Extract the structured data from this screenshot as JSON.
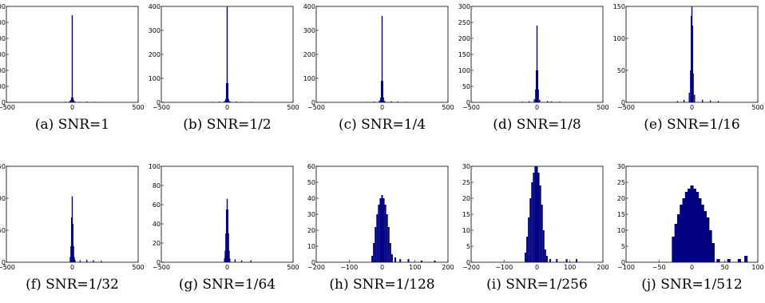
{
  "chart_data": [
    {
      "type": "bar",
      "caption": "(a)  SNR=1",
      "xlim": [
        -500,
        500
      ],
      "ylim": [
        0,
        600
      ],
      "xticks": [
        "−500",
        "0",
        "500"
      ],
      "yticks": [
        "0",
        "100",
        "200",
        "300",
        "400",
        "500",
        "600"
      ],
      "x": [
        -110,
        -50,
        -20,
        -10,
        -5,
        0,
        5,
        10,
        20,
        60,
        110,
        170,
        210
      ],
      "values": [
        2,
        4,
        8,
        15,
        30,
        545,
        30,
        15,
        6,
        3,
        4,
        3,
        2
      ]
    },
    {
      "type": "bar",
      "caption": "(b)  SNR=1/2",
      "xlim": [
        -500,
        500
      ],
      "ylim": [
        0,
        400
      ],
      "xticks": [
        "−500",
        "0",
        "500"
      ],
      "yticks": [
        "0",
        "100",
        "200",
        "300",
        "400"
      ],
      "x": [
        -110,
        -60,
        -20,
        -10,
        -5,
        0,
        5,
        10,
        20,
        70,
        110,
        180
      ],
      "values": [
        2,
        3,
        6,
        14,
        80,
        400,
        80,
        14,
        5,
        3,
        2,
        2
      ]
    },
    {
      "type": "bar",
      "caption": "(c)  SNR=1/4",
      "xlim": [
        -500,
        500
      ],
      "ylim": [
        0,
        400
      ],
      "xticks": [
        "−500",
        "0",
        "500"
      ],
      "yticks": [
        "0",
        "100",
        "200",
        "300",
        "400"
      ],
      "x": [
        -120,
        -60,
        -20,
        -10,
        -5,
        0,
        5,
        10,
        20,
        70,
        120,
        180
      ],
      "values": [
        2,
        3,
        8,
        20,
        90,
        360,
        90,
        20,
        6,
        4,
        3,
        2
      ]
    },
    {
      "type": "bar",
      "caption": "(d)  SNR=1/8",
      "xlim": [
        -500,
        500
      ],
      "ylim": [
        0,
        300
      ],
      "xticks": [
        "−500",
        "0",
        "500"
      ],
      "yticks": [
        "0",
        "50",
        "100",
        "150",
        "200",
        "250",
        "300"
      ],
      "x": [
        -110,
        -60,
        -20,
        -10,
        -5,
        0,
        5,
        10,
        20,
        80,
        110,
        170
      ],
      "values": [
        2,
        3,
        10,
        40,
        100,
        240,
        100,
        40,
        8,
        4,
        3,
        2
      ]
    },
    {
      "type": "bar",
      "caption": "(e)  SNR=1/16",
      "xlim": [
        -500,
        500
      ],
      "ylim": [
        0,
        150
      ],
      "xticks": [
        "−500",
        "0",
        "500"
      ],
      "yticks": [
        "0",
        "50",
        "100",
        "150"
      ],
      "x": [
        -110,
        -60,
        -20,
        -10,
        -5,
        0,
        5,
        10,
        20,
        80,
        140,
        200
      ],
      "values": [
        2,
        4,
        15,
        50,
        135,
        150,
        120,
        45,
        12,
        4,
        3,
        2
      ]
    },
    {
      "type": "bar",
      "caption": "(f)  SNR=1/32",
      "xlim": [
        -500,
        500
      ],
      "ylim": [
        0,
        150
      ],
      "xticks": [
        "−500",
        "0",
        "500"
      ],
      "yticks": [
        "0",
        "50",
        "100",
        "150"
      ],
      "x": [
        -15,
        -10,
        -5,
        0,
        5,
        10,
        15,
        20,
        60,
        110,
        160,
        220
      ],
      "values": [
        8,
        25,
        70,
        103,
        60,
        25,
        8,
        4,
        3,
        4,
        3,
        2
      ]
    },
    {
      "type": "bar",
      "caption": "(g)  SNR=1/64",
      "xlim": [
        -500,
        500
      ],
      "ylim": [
        0,
        100
      ],
      "xticks": [
        "−500",
        "0",
        "500"
      ],
      "yticks": [
        "0",
        "20",
        "40",
        "60",
        "80",
        "100"
      ],
      "x": [
        -20,
        -15,
        -10,
        -5,
        0,
        5,
        10,
        15,
        20,
        60,
        110,
        180
      ],
      "values": [
        4,
        12,
        30,
        55,
        66,
        55,
        30,
        12,
        4,
        3,
        2,
        2
      ]
    },
    {
      "type": "bar",
      "caption": "(h)  SNR=1/128",
      "xlim": [
        -200,
        200
      ],
      "ylim": [
        0,
        60
      ],
      "xticks": [
        "−200",
        "−100",
        "0",
        "100",
        "200"
      ],
      "yticks": [
        "0",
        "10",
        "20",
        "30",
        "40",
        "50",
        "60"
      ],
      "x": [
        -30,
        -25,
        -20,
        -15,
        -10,
        -5,
        0,
        5,
        10,
        15,
        20,
        25,
        30,
        40,
        55,
        80,
        120,
        160
      ],
      "values": [
        4,
        12,
        22,
        30,
        36,
        40,
        42,
        40,
        36,
        30,
        22,
        12,
        5,
        3,
        2,
        2,
        1,
        1
      ]
    },
    {
      "type": "bar",
      "caption": "(i)  SNR=1/256",
      "xlim": [
        -200,
        200
      ],
      "ylim": [
        0,
        30
      ],
      "xticks": [
        "−200",
        "−100",
        "0",
        "100",
        "200"
      ],
      "yticks": [
        "0",
        "5",
        "10",
        "15",
        "20",
        "25",
        "30"
      ],
      "x": [
        -35,
        -30,
        -25,
        -20,
        -15,
        -10,
        -5,
        0,
        5,
        10,
        15,
        20,
        25,
        30,
        40,
        60,
        90,
        120
      ],
      "values": [
        3,
        8,
        14,
        20,
        25,
        28,
        30,
        30,
        28,
        24,
        18,
        10,
        4,
        2,
        1,
        1,
        1,
        1
      ]
    },
    {
      "type": "bar",
      "caption": "(j)  SNR=1/512",
      "xlim": [
        -100,
        100
      ],
      "ylim": [
        0,
        30
      ],
      "xticks": [
        "−100",
        "−50",
        "0",
        "50",
        "100"
      ],
      "yticks": [
        "0",
        "5",
        "10",
        "15",
        "20",
        "25",
        "30"
      ],
      "x": [
        -28,
        -24,
        -20,
        -16,
        -12,
        -8,
        -4,
        0,
        4,
        8,
        12,
        16,
        20,
        24,
        28,
        32,
        40,
        56,
        72,
        82
      ],
      "values": [
        8,
        12,
        15,
        18,
        20,
        22,
        23,
        24,
        23,
        22,
        20,
        18,
        16,
        14,
        10,
        6,
        1,
        1,
        1,
        2
      ]
    }
  ],
  "style": {
    "bar_color": "#000080"
  }
}
